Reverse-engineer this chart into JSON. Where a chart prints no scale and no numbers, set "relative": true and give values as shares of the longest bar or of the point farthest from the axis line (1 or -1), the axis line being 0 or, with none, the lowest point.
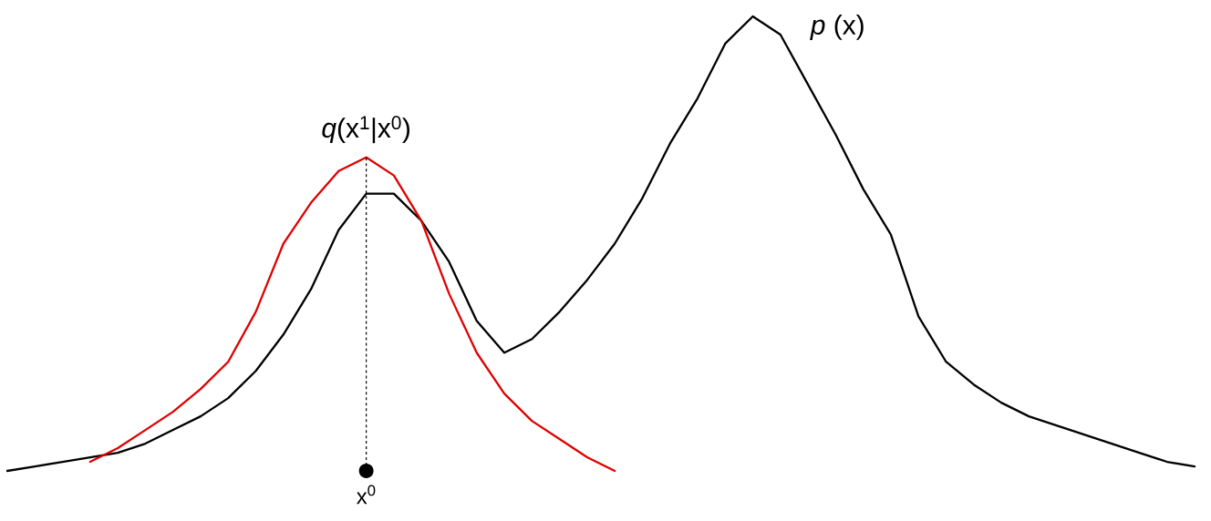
{
  "chart_data": {
    "type": "line",
    "relative": true,
    "tick_labels": "x",
    "legend": false,
    "grid": false,
    "categories": [
      null,
      null,
      null,
      null,
      null,
      null,
      null,
      null,
      null,
      null,
      null,
      null,
      null,
      null,
      null,
      null,
      null,
      null,
      null,
      null,
      null,
      null,
      null,
      null,
      null,
      null,
      null,
      null,
      null,
      null,
      null,
      null,
      null,
      null,
      null,
      null,
      null,
      null,
      null,
      null,
      null,
      null,
      null,
      null
    ],
    "series": [
      {
        "name": "*p* (x)",
        "color": "#000000",
        "values": [
          0,
          0.01,
          0.02,
          0.03,
          0.04,
          0.06,
          0.09,
          0.12,
          0.16,
          0.22,
          0.3,
          0.4,
          0.53,
          0.61,
          0.61,
          0.55,
          0.46,
          0.33,
          0.26,
          0.29,
          0.35,
          0.42,
          0.5,
          0.6,
          0.72,
          0.82,
          0.94,
          1.0,
          0.96,
          0.85,
          0.74,
          0.62,
          0.52,
          0.34,
          0.24,
          0.19,
          0.15,
          0.12,
          0.1,
          0.08,
          0.06,
          0.04,
          0.02,
          0.01
        ]
      },
      {
        "name": "*q*(x$^{1}$|x$^{0}$)",
        "color": "#e00000",
        "values": [
          null,
          null,
          null,
          0.02,
          0.05,
          0.09,
          0.13,
          0.18,
          0.24,
          0.35,
          0.5,
          0.59,
          0.66,
          0.69,
          0.65,
          0.55,
          0.39,
          0.26,
          0.17,
          0.11,
          0.07,
          0.03,
          0,
          null,
          null,
          null,
          null,
          null,
          null,
          null,
          null,
          null,
          null,
          null,
          null,
          null,
          null,
          null,
          null,
          null,
          null,
          null,
          null,
          null
        ]
      }
    ],
    "ref_lines": [
      {
        "axis": "x",
        "label": "x$^{0}$",
        "color": "#000000",
        "line_style": "dashed"
      }
    ]
  }
}
